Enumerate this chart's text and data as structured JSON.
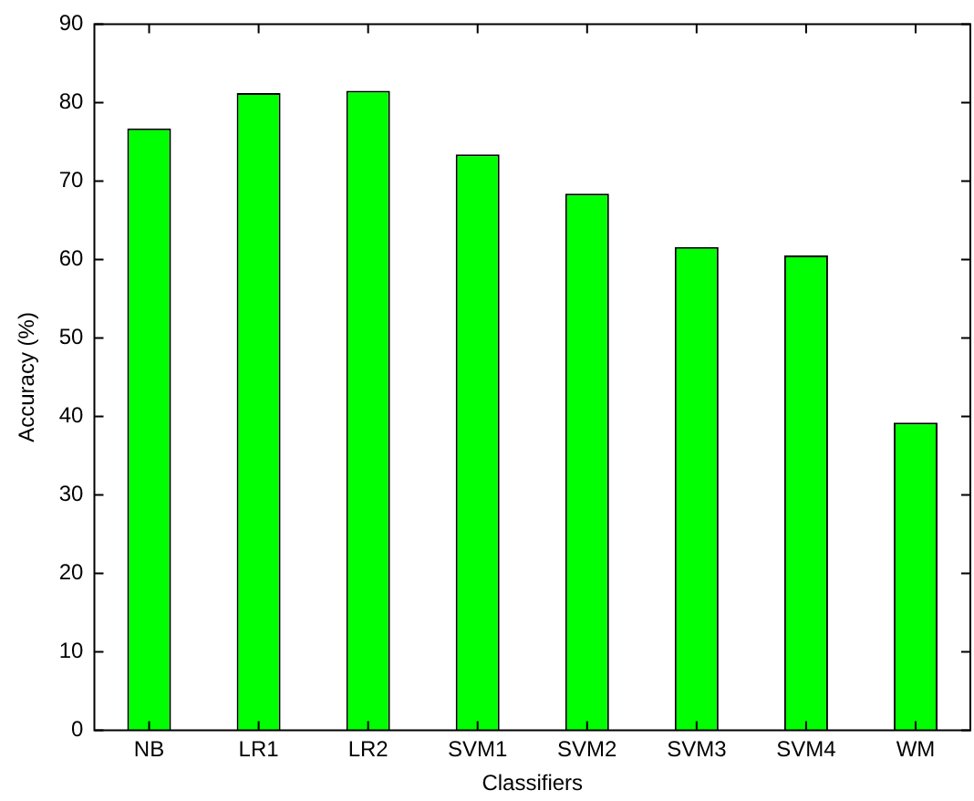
{
  "chart_data": {
    "type": "bar",
    "xlabel": "Classifiers",
    "ylabel": "Accuracy (%)",
    "categories": [
      "NB",
      "LR1",
      "LR2",
      "SVM1",
      "SVM2",
      "SVM3",
      "SVM4",
      "WM"
    ],
    "values": [
      76.7,
      81.2,
      81.5,
      73.4,
      68.4,
      61.6,
      60.5,
      39.2
    ],
    "color": "#00ff00",
    "ylim": [
      0,
      90
    ],
    "yticks": [
      0,
      10,
      20,
      30,
      40,
      50,
      60,
      70,
      80,
      90
    ],
    "grid": false,
    "legend": false
  }
}
